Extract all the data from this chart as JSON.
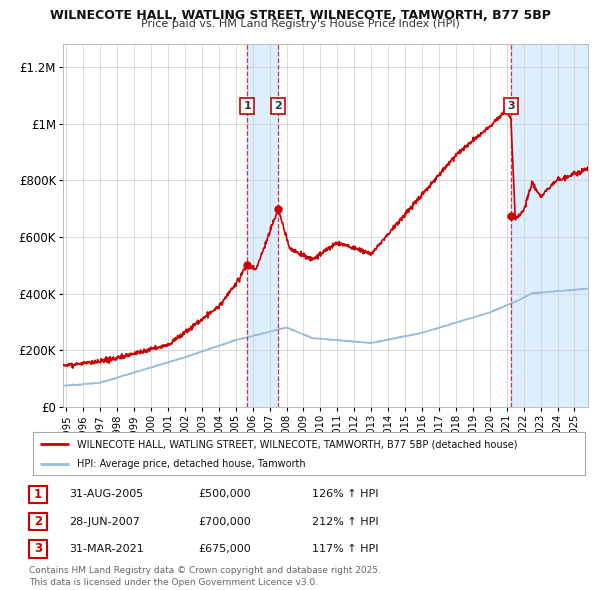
{
  "title_line1": "WILNECOTE HALL, WATLING STREET, WILNECOTE, TAMWORTH, B77 5BP",
  "title_line2": "Price paid vs. HM Land Registry's House Price Index (HPI)",
  "background_color": "#ffffff",
  "plot_bg_color": "#ffffff",
  "grid_color": "#cccccc",
  "red_line_color": "#cc0000",
  "blue_line_color": "#99bbdd",
  "shade_color": "#ddeeff",
  "legend_red_label": "WILNECOTE HALL, WATLING STREET, WILNECOTE, TAMWORTH, B77 5BP (detached house)",
  "legend_blue_label": "HPI: Average price, detached house, Tamworth",
  "transactions": [
    {
      "num": 1,
      "date": "31-AUG-2005",
      "year": 2005.67,
      "price": 500000,
      "pct": "126%"
    },
    {
      "num": 2,
      "date": "28-JUN-2007",
      "year": 2007.5,
      "price": 700000,
      "pct": "212%"
    },
    {
      "num": 3,
      "date": "31-MAR-2021",
      "year": 2021.25,
      "price": 675000,
      "pct": "117%"
    }
  ],
  "footnote": "Contains HM Land Registry data © Crown copyright and database right 2025.\nThis data is licensed under the Open Government Licence v3.0.",
  "ylim": [
    0,
    1280000
  ],
  "xlim_start": 1994.8,
  "xlim_end": 2025.8,
  "yticks": [
    0,
    200000,
    400000,
    600000,
    800000,
    1000000,
    1200000
  ],
  "ytick_labels": [
    "£0",
    "£200K",
    "£400K",
    "£600K",
    "£800K",
    "£1M",
    "£1.2M"
  ]
}
